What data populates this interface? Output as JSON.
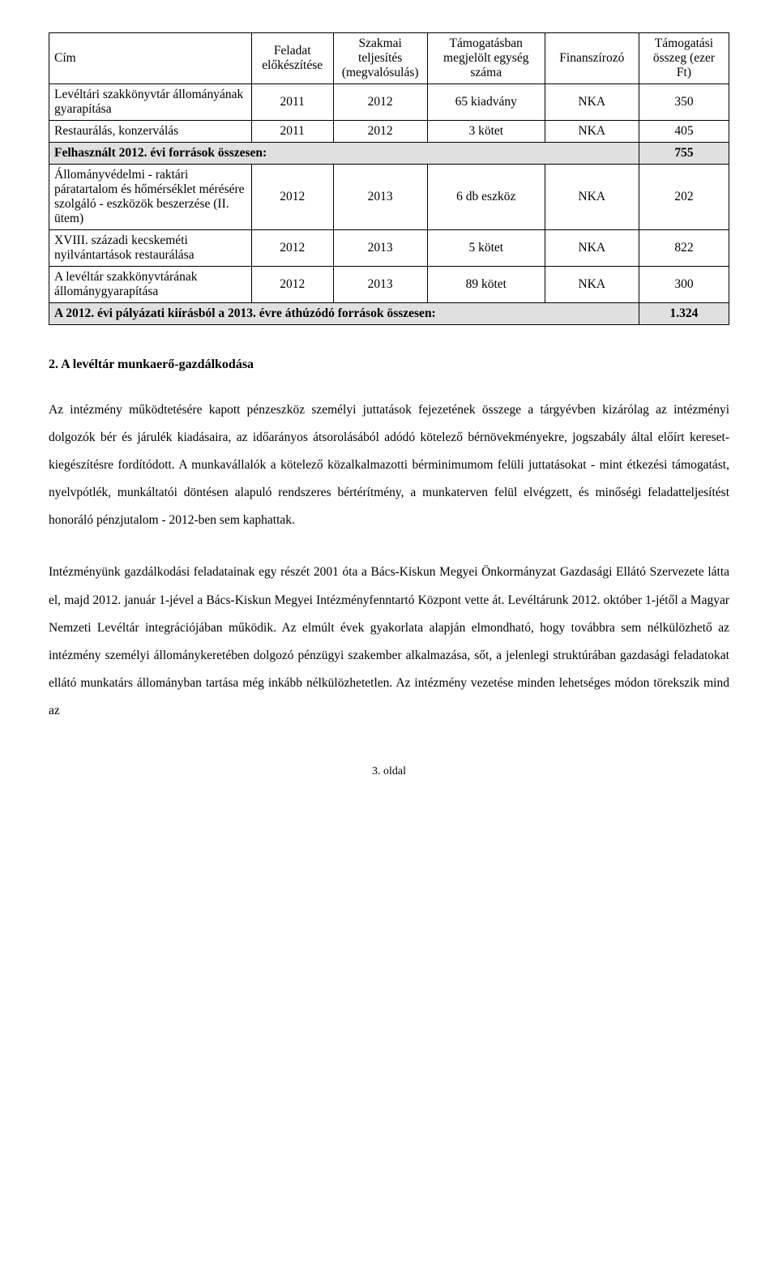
{
  "table": {
    "headers": {
      "title": "Cím",
      "prep": "Feladat előkészítése",
      "perf": "Szakmai teljesítés (megvalósulás)",
      "units": "Támogatásban megjelölt egység száma",
      "fund": "Finanszírozó",
      "amount": "Támogatási összeg (ezer Ft)"
    },
    "rows": [
      {
        "title": "Levéltári szakkönyvtár állományának gyarapítása",
        "prep": "2011",
        "perf": "2012",
        "units": "65 kiadvány",
        "fund": "NKA",
        "amount": "350"
      },
      {
        "title": "Restaurálás, konzerválás",
        "prep": "2011",
        "perf": "2012",
        "units": "3 kötet",
        "fund": "NKA",
        "amount": "405"
      }
    ],
    "shaded1": {
      "label": "Felhasznált 2012. évi források összesen:",
      "value": "755"
    },
    "rows2": [
      {
        "title": "Állományvédelmi  - raktári páratartalom és hőmérséklet mérésére szolgáló - eszközök beszerzése (II. ütem)",
        "prep": "2012",
        "perf": "2013",
        "units": "6 db eszköz",
        "fund": "NKA",
        "amount": "202"
      },
      {
        "title": "XVIII. századi kecskeméti nyilvántartások restaurálása",
        "prep": "2012",
        "perf": "2013",
        "units": "5 kötet",
        "fund": "NKA",
        "amount": "822"
      },
      {
        "title": "A levéltár szakkönyvtárának állománygyarapítása",
        "prep": "2012",
        "perf": "2013",
        "units": "89 kötet",
        "fund": "NKA",
        "amount": "300"
      }
    ],
    "shaded2": {
      "label": "A 2012. évi pályázati kiírásból a 2013. évre áthúzódó források összesen:",
      "value": "1.324"
    }
  },
  "section_heading": "2. A levéltár munkaerő-gazdálkodása",
  "para1": "Az intézmény működtetésére kapott pénzeszköz személyi juttatások fejezetének összege a tárgyévben kizárólag az intézményi dolgozók bér és járulék kiadásaira, az időarányos átsorolásából adódó kötelező bérnövekményekre, jogszabály által előírt kereset-kiegészítésre fordítódott. A munkavállalók a kötelező közalkalmazotti bérminimumom felüli juttatásokat - mint étkezési támogatást, nyelvpótlék, munkáltatói döntésen alapuló rendszeres bértérítmény, a munkaterven felül elvégzett, és minőségi feladatteljesítést honoráló pénzjutalom - 2012-ben sem kaphattak.",
  "para2": "Intézményünk gazdálkodási feladatainak egy részét 2001 óta a Bács-Kiskun Megyei Önkormányzat Gazdasági Ellátó Szervezete látta el, majd 2012. január 1-jével a Bács-Kiskun Megyei Intézményfenntartó Központ vette át. Levéltárunk 2012. október 1-jétől a Magyar Nemzeti Levéltár integrációjában működik. Az elmúlt évek gyakorlata alapján elmondható, hogy továbbra sem nélkülözhető az intézmény személyi állománykeretében dolgozó pénzügyi szakember alkalmazása, sőt, a jelenlegi struktúrában gazdasági feladatokat ellátó munkatárs állományban tartása még inkább nélkülözhetetlen. Az intézmény vezetése minden lehetséges módon törekszik mind az",
  "footer": "3. oldal"
}
